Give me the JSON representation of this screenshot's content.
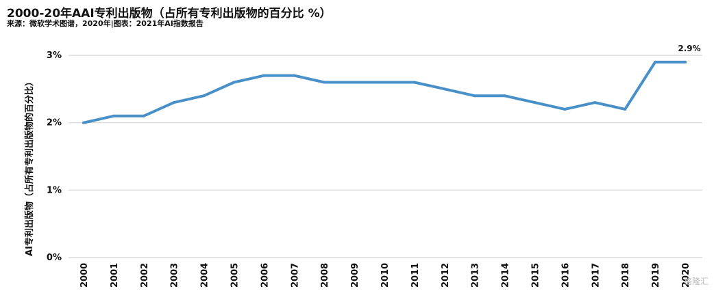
{
  "title": "2000-20年AAI专利出版物（占所有专利出版物的百分比 %）",
  "subtitle": "来源：微软学术图谱，2020年|图表：2021年AI指数报告",
  "watermark": "格隆汇",
  "colors": {
    "line": "#4a90c8",
    "grid": "#d4d4d4",
    "text": "#111111"
  },
  "chart_data": {
    "type": "line",
    "title": "2000-20年AAI专利出版物（占所有专利出版物的百分比 %）",
    "xlabel": "",
    "ylabel": "AI专利出版物（占所有专利出版物的百分比）",
    "ylim": [
      0,
      3
    ],
    "y_ticks": [
      {
        "value": 0,
        "label": "0%"
      },
      {
        "value": 1,
        "label": "1%"
      },
      {
        "value": 2,
        "label": "2%"
      },
      {
        "value": 3,
        "label": "3%"
      }
    ],
    "x": [
      "2000",
      "2001",
      "2002",
      "2003",
      "2004",
      "2005",
      "2006",
      "2007",
      "2008",
      "2009",
      "2010",
      "2011",
      "2012",
      "2013",
      "2014",
      "2015",
      "2016",
      "2017",
      "2018",
      "2019",
      "2020"
    ],
    "values": [
      2.0,
      2.1,
      2.1,
      2.3,
      2.4,
      2.6,
      2.7,
      2.7,
      2.6,
      2.6,
      2.6,
      2.6,
      2.5,
      2.4,
      2.4,
      2.3,
      2.2,
      2.3,
      2.2,
      2.9,
      2.9
    ],
    "data_labels": [
      {
        "index": 20,
        "label": "2.9%"
      }
    ],
    "grid": true,
    "legend": "none"
  }
}
